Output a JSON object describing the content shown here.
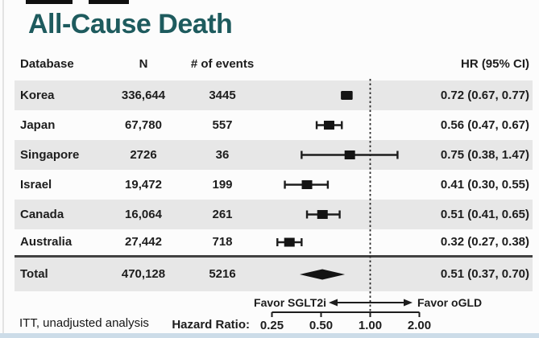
{
  "title": "All-Cause Death",
  "footnote": "ITT, unadjusted analysis",
  "header": {
    "database": "Database",
    "n": "N",
    "events": "# of events",
    "hr": "HR (95% CI)"
  },
  "chart_data": {
    "type": "forest",
    "xlabel": "Hazard Ratio:",
    "x_scale": "log2",
    "x_ticks": [
      0.25,
      0.5,
      1.0,
      2.0
    ],
    "x_tick_labels": [
      "0.25",
      "0.50",
      "1.00",
      "2.00"
    ],
    "xlim": [
      0.25,
      2.0
    ],
    "reference_line": 1.0,
    "favor_left": "Favor SGLT2i",
    "favor_right": "Favor oGLD",
    "rows": [
      {
        "database": "Korea",
        "n": "336,644",
        "events": "3445",
        "hr": 0.72,
        "ci_low": 0.67,
        "ci_high": 0.77,
        "hr_label": "0.72 (0.67, 0.77)"
      },
      {
        "database": "Japan",
        "n": "67,780",
        "events": "557",
        "hr": 0.56,
        "ci_low": 0.47,
        "ci_high": 0.67,
        "hr_label": "0.56 (0.47, 0.67)"
      },
      {
        "database": "Singapore",
        "n": "2726",
        "events": "36",
        "hr": 0.75,
        "ci_low": 0.38,
        "ci_high": 1.47,
        "hr_label": "0.75 (0.38, 1.47)"
      },
      {
        "database": "Israel",
        "n": "19,472",
        "events": "199",
        "hr": 0.41,
        "ci_low": 0.3,
        "ci_high": 0.55,
        "hr_label": "0.41 (0.30, 0.55)"
      },
      {
        "database": "Canada",
        "n": "16,064",
        "events": "261",
        "hr": 0.51,
        "ci_low": 0.41,
        "ci_high": 0.65,
        "hr_label": "0.51 (0.41, 0.65)"
      },
      {
        "database": "Australia",
        "n": "27,442",
        "events": "718",
        "hr": 0.32,
        "ci_low": 0.27,
        "ci_high": 0.38,
        "hr_label": "0.32 (0.27, 0.38)"
      }
    ],
    "total": {
      "database": "Total",
      "n": "470,128",
      "events": "5216",
      "hr": 0.51,
      "ci_low": 0.37,
      "ci_high": 0.7,
      "hr_label": "0.51 (0.37, 0.70)"
    }
  },
  "colors": {
    "title": "#1e5b5e",
    "row_alt": "#e7e7e7",
    "ink": "#1d1d1d",
    "marker": "#141414",
    "accent_strip": "#ccdce8"
  }
}
